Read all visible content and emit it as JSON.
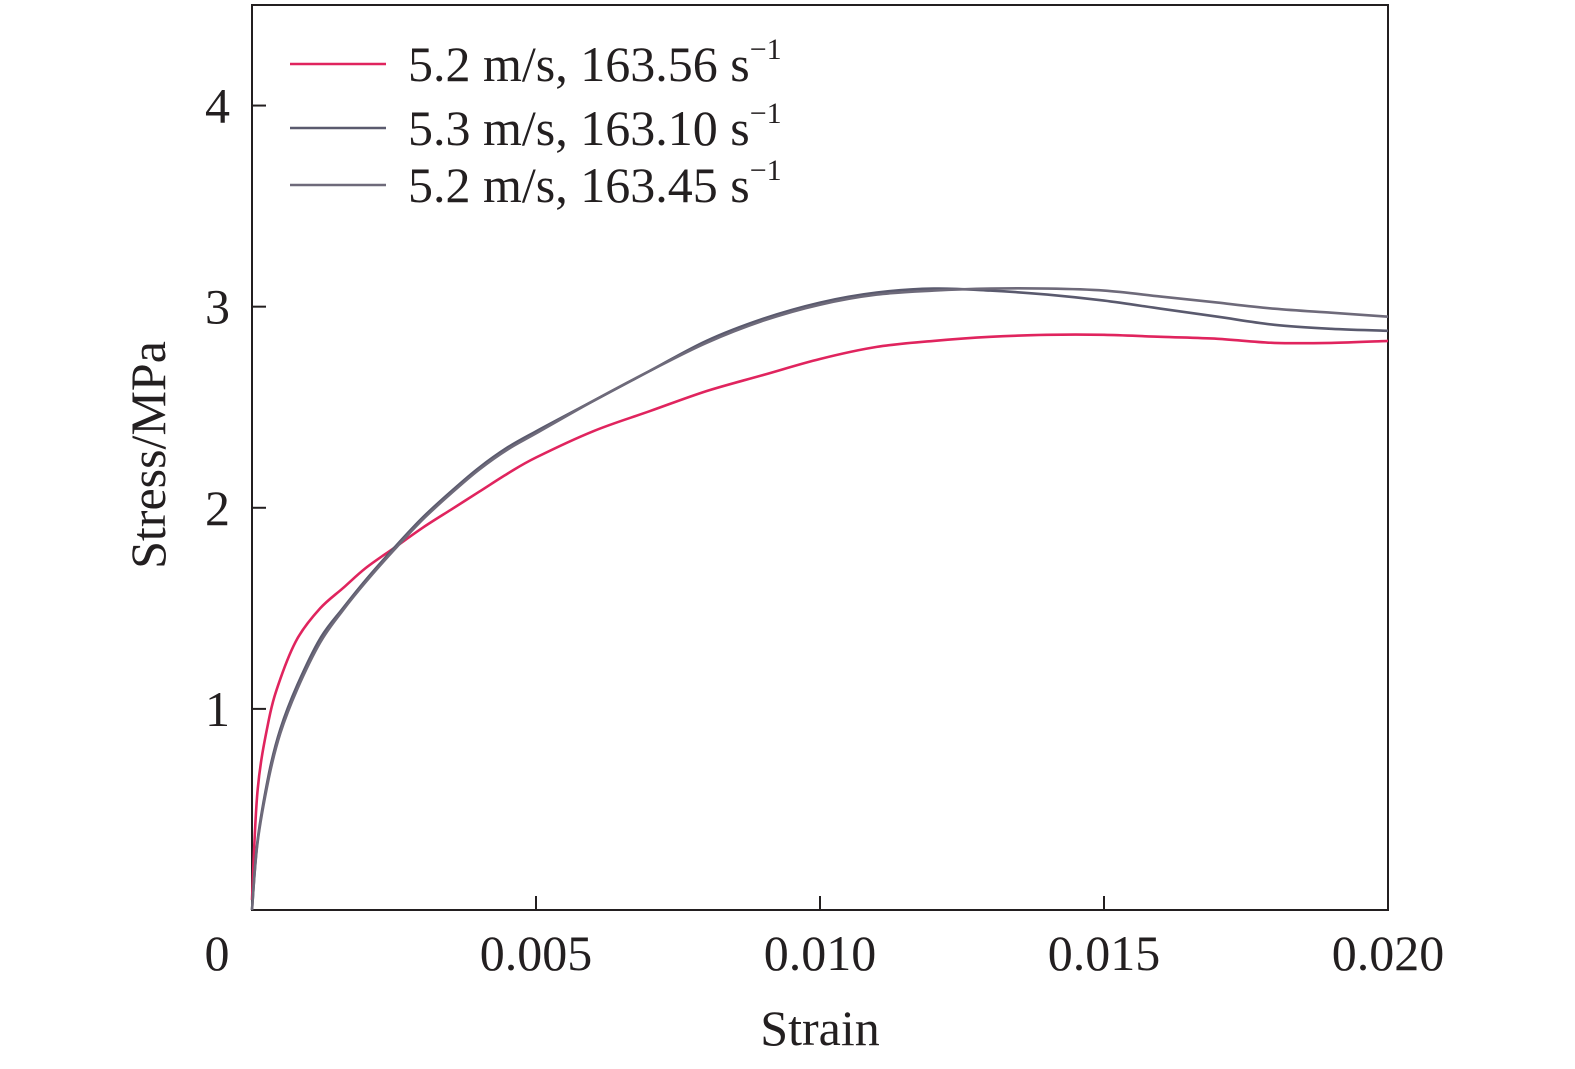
{
  "chart_data": {
    "type": "line",
    "xlabel": "Strain",
    "ylabel": "Stress/MPa",
    "xlim": [
      0,
      0.02
    ],
    "ylim": [
      0,
      4.5
    ],
    "xticks": [
      0,
      0.005,
      0.01,
      0.015,
      0.02
    ],
    "xtick_labels": [
      "0",
      "0.005",
      "0.010",
      "0.015",
      "0.020"
    ],
    "yticks": [
      1,
      2,
      3,
      4
    ],
    "ytick_labels": [
      "1",
      "2",
      "3",
      "4"
    ],
    "grid": false,
    "legend_position": "top-left",
    "series": [
      {
        "name": "5.2 m/s, 163.56 s",
        "name_sup": "−1",
        "color": "#e0245e",
        "x": [
          0,
          0.0001,
          0.0003,
          0.0005,
          0.0008,
          0.0012,
          0.0016,
          0.002,
          0.0025,
          0.003,
          0.0035,
          0.004,
          0.0045,
          0.005,
          0.006,
          0.007,
          0.008,
          0.009,
          0.01,
          0.011,
          0.012,
          0.013,
          0.014,
          0.015,
          0.016,
          0.017,
          0.018,
          0.019,
          0.02
        ],
        "y": [
          0.05,
          0.6,
          0.95,
          1.15,
          1.35,
          1.5,
          1.6,
          1.7,
          1.8,
          1.9,
          1.99,
          2.08,
          2.17,
          2.25,
          2.38,
          2.48,
          2.58,
          2.66,
          2.74,
          2.8,
          2.83,
          2.85,
          2.86,
          2.86,
          2.85,
          2.84,
          2.82,
          2.82,
          2.83
        ]
      },
      {
        "name": "5.3 m/s, 163.10 s",
        "name_sup": "−1",
        "color": "#5a5a6e",
        "x": [
          0,
          0.0001,
          0.0003,
          0.0005,
          0.0008,
          0.0012,
          0.0016,
          0.002,
          0.0025,
          0.003,
          0.0035,
          0.004,
          0.0045,
          0.005,
          0.006,
          0.007,
          0.008,
          0.009,
          0.01,
          0.011,
          0.012,
          0.013,
          0.014,
          0.015,
          0.016,
          0.017,
          0.018,
          0.019,
          0.02
        ],
        "y": [
          0.0,
          0.35,
          0.68,
          0.9,
          1.12,
          1.35,
          1.5,
          1.64,
          1.8,
          1.95,
          2.08,
          2.2,
          2.3,
          2.38,
          2.53,
          2.68,
          2.83,
          2.94,
          3.02,
          3.07,
          3.09,
          3.08,
          3.06,
          3.03,
          2.99,
          2.95,
          2.91,
          2.89,
          2.88
        ]
      },
      {
        "name": "5.2 m/s, 163.45 s",
        "name_sup": "−1",
        "color": "#6e6a7a",
        "x": [
          0,
          0.0001,
          0.0003,
          0.0005,
          0.0008,
          0.0012,
          0.0016,
          0.002,
          0.0025,
          0.003,
          0.0035,
          0.004,
          0.0045,
          0.005,
          0.006,
          0.007,
          0.008,
          0.009,
          0.01,
          0.011,
          0.012,
          0.013,
          0.014,
          0.015,
          0.016,
          0.017,
          0.018,
          0.019,
          0.02
        ],
        "y": [
          0.0,
          0.34,
          0.66,
          0.88,
          1.1,
          1.33,
          1.49,
          1.63,
          1.79,
          1.94,
          2.07,
          2.19,
          2.29,
          2.37,
          2.53,
          2.68,
          2.82,
          2.93,
          3.01,
          3.06,
          3.08,
          3.09,
          3.09,
          3.08,
          3.05,
          3.02,
          2.99,
          2.97,
          2.95
        ]
      }
    ]
  }
}
